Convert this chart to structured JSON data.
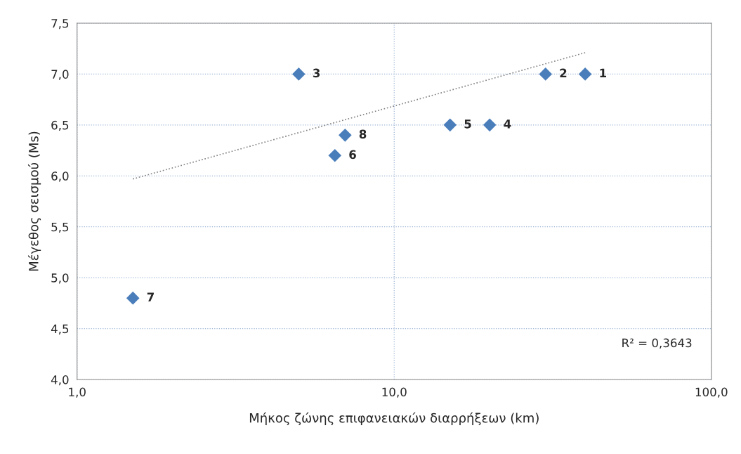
{
  "chart_data": {
    "type": "scatter",
    "xlabel": "Μήκος ζώνης επιφανειακών διαρρήξεων (km)",
    "ylabel": "Μέγεθος σεισμού (Ms)",
    "log": "x",
    "grid": true,
    "legend": false,
    "marker": "diamond",
    "xlim": [
      1,
      100
    ],
    "xticks": [
      {
        "value": 1,
        "label": "1,0"
      },
      {
        "value": 10,
        "label": "10,0"
      },
      {
        "value": 100,
        "label": "100,0"
      }
    ],
    "ylim": [
      4,
      7.5
    ],
    "yticks": [
      {
        "value": 4,
        "label": "4,0"
      },
      {
        "value": 4.5,
        "label": "4,5"
      },
      {
        "value": 5,
        "label": "5,0"
      },
      {
        "value": 5.5,
        "label": "5,5"
      },
      {
        "value": 6,
        "label": "6,0"
      },
      {
        "value": 6.5,
        "label": "6,5"
      },
      {
        "value": 7,
        "label": "7,0"
      },
      {
        "value": 7.5,
        "label": "7,5"
      }
    ],
    "series": [
      {
        "color": "#4a7ebb",
        "x": [
          40,
          30,
          5,
          20,
          15,
          6.5,
          1.5,
          7
        ],
        "values": [
          7.0,
          7.0,
          7.0,
          6.5,
          6.5,
          6.2,
          4.8,
          6.4
        ]
      },
      {
        "type": "line",
        "color": "#808080",
        "line_style": "dotted",
        "marker": "none",
        "x": [
          1.5,
          40
        ],
        "values": [
          5.97,
          7.21
        ]
      }
    ],
    "annotations": [
      {
        "text": "1",
        "x": 40,
        "y": 7.0
      },
      {
        "text": "2",
        "x": 30,
        "y": 7.0
      },
      {
        "text": "3",
        "x": 5,
        "y": 7.0
      },
      {
        "text": "4",
        "x": 20,
        "y": 6.5
      },
      {
        "text": "5",
        "x": 15,
        "y": 6.5
      },
      {
        "text": "6",
        "x": 6.5,
        "y": 6.2
      },
      {
        "text": "7",
        "x": 1.5,
        "y": 4.8
      },
      {
        "text": "8",
        "x": 7,
        "y": 6.4
      },
      "R² = 0,3643"
    ]
  }
}
